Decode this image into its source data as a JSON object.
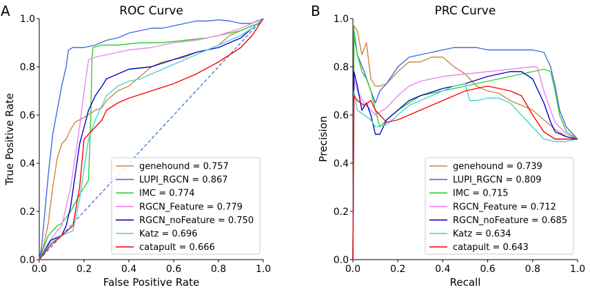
{
  "panel_labels": [
    "A",
    "B"
  ],
  "chart_data": [
    {
      "type": "line",
      "title": "ROC Curve",
      "xlabel": "False Positive Rate",
      "ylabel": "True Positive Rate",
      "xlim": [
        0,
        1
      ],
      "ylim": [
        0,
        1
      ],
      "xticks": [
        0.0,
        0.2,
        0.4,
        0.6,
        0.8,
        1.0
      ],
      "yticks": [
        0.0,
        0.2,
        0.4,
        0.6,
        0.8,
        1.0
      ],
      "grid": false,
      "legend_position": "lower-right",
      "reference_line": {
        "x": [
          0,
          1
        ],
        "y": [
          0,
          1
        ],
        "style": "dashed",
        "color": "#3a6fd8"
      },
      "series": [
        {
          "name": "genehound = 0.757",
          "color": "#cd853f",
          "x": [
            0,
            0.02,
            0.04,
            0.06,
            0.08,
            0.1,
            0.12,
            0.14,
            0.16,
            0.2,
            0.25,
            0.28,
            0.3,
            0.35,
            0.4,
            0.45,
            0.5,
            0.55,
            0.6,
            0.65,
            0.7,
            0.75,
            0.8,
            0.85,
            0.9,
            0.95,
            0.98,
            1.0
          ],
          "y": [
            0,
            0.06,
            0.15,
            0.3,
            0.42,
            0.48,
            0.5,
            0.54,
            0.57,
            0.59,
            0.62,
            0.63,
            0.66,
            0.7,
            0.72,
            0.76,
            0.8,
            0.82,
            0.83,
            0.84,
            0.86,
            0.87,
            0.89,
            0.93,
            0.95,
            0.97,
            0.98,
            1.0
          ]
        },
        {
          "name": "LUPI_RGCN = 0.867",
          "color": "#4169e1",
          "x": [
            0,
            0.01,
            0.02,
            0.04,
            0.06,
            0.08,
            0.1,
            0.12,
            0.13,
            0.15,
            0.2,
            0.25,
            0.3,
            0.35,
            0.4,
            0.45,
            0.5,
            0.55,
            0.6,
            0.65,
            0.7,
            0.75,
            0.8,
            0.85,
            0.9,
            0.95,
            0.97,
            1.0
          ],
          "y": [
            0,
            0.05,
            0.15,
            0.35,
            0.52,
            0.62,
            0.72,
            0.8,
            0.87,
            0.88,
            0.88,
            0.89,
            0.91,
            0.92,
            0.94,
            0.95,
            0.96,
            0.96,
            0.97,
            0.98,
            0.99,
            0.99,
            0.995,
            0.99,
            0.98,
            0.98,
            0.99,
            1.0
          ]
        },
        {
          "name": "IMC = 0.774",
          "color": "#32cd32",
          "x": [
            0,
            0.02,
            0.04,
            0.06,
            0.08,
            0.1,
            0.14,
            0.18,
            0.2,
            0.22,
            0.23,
            0.235,
            0.24,
            0.28,
            0.35,
            0.45,
            0.55,
            0.65,
            0.75,
            0.85,
            0.9,
            0.95,
            0.98,
            1.0
          ],
          "y": [
            0,
            0.05,
            0.1,
            0.12,
            0.14,
            0.15,
            0.2,
            0.27,
            0.3,
            0.33,
            0.6,
            0.84,
            0.88,
            0.89,
            0.89,
            0.9,
            0.9,
            0.91,
            0.92,
            0.94,
            0.95,
            0.97,
            0.98,
            1.0
          ],
          "x_note": null
        },
        {
          "name": "RGCN_Feature = 0.779",
          "color": "#ee82ee",
          "x": [
            0,
            0.05,
            0.08,
            0.1,
            0.14,
            0.18,
            0.2,
            0.22,
            0.25,
            0.3,
            0.35,
            0.4,
            0.5,
            0.6,
            0.7,
            0.8,
            0.9,
            0.95,
            1.0
          ],
          "y": [
            0,
            0.08,
            0.12,
            0.14,
            0.3,
            0.55,
            0.7,
            0.83,
            0.84,
            0.85,
            0.86,
            0.87,
            0.88,
            0.9,
            0.91,
            0.93,
            0.96,
            0.98,
            1.0
          ]
        },
        {
          "name": "RGCN_noFeature = 0.750",
          "color": "#0000cd",
          "x": [
            0,
            0.05,
            0.1,
            0.12,
            0.14,
            0.16,
            0.18,
            0.2,
            0.22,
            0.25,
            0.28,
            0.3,
            0.35,
            0.4,
            0.5,
            0.6,
            0.7,
            0.8,
            0.9,
            0.95,
            1.0
          ],
          "y": [
            0,
            0.08,
            0.1,
            0.14,
            0.22,
            0.35,
            0.48,
            0.55,
            0.62,
            0.68,
            0.72,
            0.75,
            0.77,
            0.79,
            0.8,
            0.83,
            0.86,
            0.88,
            0.92,
            0.96,
            1.0
          ]
        },
        {
          "name": "Katz = 0.696",
          "color": "#48d1cc",
          "x": [
            0,
            0.05,
            0.1,
            0.15,
            0.18,
            0.2,
            0.22,
            0.25,
            0.28,
            0.3,
            0.35,
            0.4,
            0.45,
            0.5,
            0.6,
            0.7,
            0.8,
            0.9,
            0.95,
            1.0
          ],
          "y": [
            0,
            0.07,
            0.1,
            0.12,
            0.25,
            0.38,
            0.5,
            0.58,
            0.64,
            0.68,
            0.72,
            0.74,
            0.75,
            0.77,
            0.81,
            0.85,
            0.89,
            0.93,
            0.96,
            1.0
          ]
        },
        {
          "name": "catapult = 0.666",
          "color": "#ff0000",
          "x": [
            0,
            0.05,
            0.1,
            0.15,
            0.18,
            0.2,
            0.22,
            0.25,
            0.28,
            0.3,
            0.35,
            0.4,
            0.5,
            0.6,
            0.7,
            0.8,
            0.85,
            0.9,
            0.95,
            1.0
          ],
          "y": [
            0,
            0.06,
            0.1,
            0.14,
            0.3,
            0.5,
            0.52,
            0.55,
            0.58,
            0.62,
            0.65,
            0.67,
            0.7,
            0.73,
            0.77,
            0.82,
            0.85,
            0.88,
            0.93,
            1.0
          ]
        }
      ]
    },
    {
      "type": "line",
      "title": "PRC Curve",
      "xlabel": "Recall",
      "ylabel": "Precision",
      "xlim": [
        0,
        1
      ],
      "ylim": [
        0,
        1
      ],
      "xticks": [
        0.0,
        0.2,
        0.4,
        0.6,
        0.8,
        1.0
      ],
      "yticks": [
        0.0,
        0.2,
        0.4,
        0.6,
        0.8,
        1.0
      ],
      "grid": false,
      "legend_position": "lower-right",
      "series": [
        {
          "name": "genehound = 0.739",
          "color": "#cd853f",
          "x": [
            0,
            0.005,
            0.02,
            0.04,
            0.06,
            0.08,
            0.1,
            0.12,
            0.15,
            0.2,
            0.25,
            0.3,
            0.35,
            0.4,
            0.45,
            0.5,
            0.55,
            0.6,
            0.65,
            0.7,
            0.75,
            0.8,
            0.85,
            0.9,
            0.95,
            1.0
          ],
          "y": [
            0,
            0.97,
            0.95,
            0.85,
            0.9,
            0.75,
            0.72,
            0.72,
            0.73,
            0.78,
            0.82,
            0.82,
            0.84,
            0.84,
            0.8,
            0.77,
            0.72,
            0.7,
            0.69,
            0.66,
            0.64,
            0.62,
            0.58,
            0.54,
            0.51,
            0.5
          ]
        },
        {
          "name": "LUPI_RGCN = 0.809",
          "color": "#4169e1",
          "x": [
            0,
            0.005,
            0.02,
            0.05,
            0.08,
            0.1,
            0.12,
            0.15,
            0.2,
            0.25,
            0.3,
            0.35,
            0.4,
            0.45,
            0.5,
            0.55,
            0.6,
            0.65,
            0.7,
            0.75,
            0.8,
            0.85,
            0.88,
            0.9,
            0.92,
            0.95,
            1.0
          ],
          "y": [
            0,
            0.95,
            0.85,
            0.78,
            0.7,
            0.65,
            0.7,
            0.73,
            0.8,
            0.84,
            0.85,
            0.86,
            0.87,
            0.88,
            0.88,
            0.88,
            0.87,
            0.87,
            0.87,
            0.87,
            0.87,
            0.86,
            0.8,
            0.72,
            0.62,
            0.55,
            0.5
          ]
        },
        {
          "name": "IMC = 0.715",
          "color": "#32cd32",
          "x": [
            0,
            0.005,
            0.01,
            0.02,
            0.04,
            0.06,
            0.08,
            0.1,
            0.12,
            0.15,
            0.2,
            0.25,
            0.3,
            0.4,
            0.5,
            0.6,
            0.7,
            0.8,
            0.85,
            0.88,
            0.9,
            0.92,
            0.95,
            1.0
          ],
          "y": [
            0,
            0.95,
            0.9,
            0.85,
            0.78,
            0.75,
            0.7,
            0.62,
            0.55,
            0.58,
            0.62,
            0.65,
            0.68,
            0.7,
            0.72,
            0.74,
            0.76,
            0.78,
            0.79,
            0.78,
            0.7,
            0.6,
            0.53,
            0.5
          ]
        },
        {
          "name": "RGCN_Feature = 0.712",
          "color": "#ee82ee",
          "x": [
            0,
            0.005,
            0.02,
            0.05,
            0.08,
            0.1,
            0.15,
            0.2,
            0.25,
            0.3,
            0.4,
            0.5,
            0.6,
            0.7,
            0.8,
            0.82,
            0.85,
            0.88,
            0.9,
            0.95,
            1.0
          ],
          "y": [
            0,
            0.75,
            0.7,
            0.65,
            0.62,
            0.6,
            0.63,
            0.68,
            0.72,
            0.74,
            0.76,
            0.77,
            0.78,
            0.79,
            0.8,
            0.8,
            0.7,
            0.62,
            0.57,
            0.52,
            0.5
          ]
        },
        {
          "name": "RGCN_noFeature = 0.685",
          "color": "#0000cd",
          "x": [
            0,
            0.005,
            0.02,
            0.04,
            0.06,
            0.08,
            0.1,
            0.12,
            0.15,
            0.2,
            0.25,
            0.3,
            0.4,
            0.5,
            0.6,
            0.7,
            0.75,
            0.8,
            0.85,
            0.88,
            0.9,
            0.95,
            1.0
          ],
          "y": [
            0,
            0.78,
            0.72,
            0.62,
            0.65,
            0.6,
            0.52,
            0.52,
            0.58,
            0.62,
            0.66,
            0.68,
            0.71,
            0.73,
            0.76,
            0.78,
            0.78,
            0.75,
            0.65,
            0.57,
            0.53,
            0.51,
            0.5
          ]
        },
        {
          "name": "Katz = 0.634",
          "color": "#48d1cc",
          "x": [
            0,
            0.005,
            0.02,
            0.05,
            0.08,
            0.1,
            0.15,
            0.2,
            0.25,
            0.3,
            0.35,
            0.4,
            0.45,
            0.5,
            0.52,
            0.55,
            0.6,
            0.65,
            0.7,
            0.75,
            0.8,
            0.85,
            0.9,
            0.95,
            1.0
          ],
          "y": [
            0,
            0.7,
            0.62,
            0.6,
            0.58,
            0.55,
            0.56,
            0.6,
            0.64,
            0.66,
            0.68,
            0.7,
            0.72,
            0.73,
            0.66,
            0.66,
            0.67,
            0.67,
            0.65,
            0.6,
            0.55,
            0.5,
            0.49,
            0.49,
            0.5
          ]
        },
        {
          "name": "catapult = 0.643",
          "color": "#ff0000",
          "x": [
            0,
            0.005,
            0.02,
            0.05,
            0.08,
            0.1,
            0.15,
            0.2,
            0.25,
            0.3,
            0.35,
            0.4,
            0.45,
            0.5,
            0.55,
            0.6,
            0.65,
            0.7,
            0.75,
            0.8,
            0.85,
            0.9,
            0.95,
            1.0
          ],
          "y": [
            0,
            0.68,
            0.66,
            0.64,
            0.66,
            0.62,
            0.57,
            0.58,
            0.6,
            0.62,
            0.64,
            0.66,
            0.68,
            0.7,
            0.71,
            0.72,
            0.71,
            0.7,
            0.68,
            0.6,
            0.53,
            0.5,
            0.5,
            0.5
          ]
        }
      ]
    }
  ]
}
